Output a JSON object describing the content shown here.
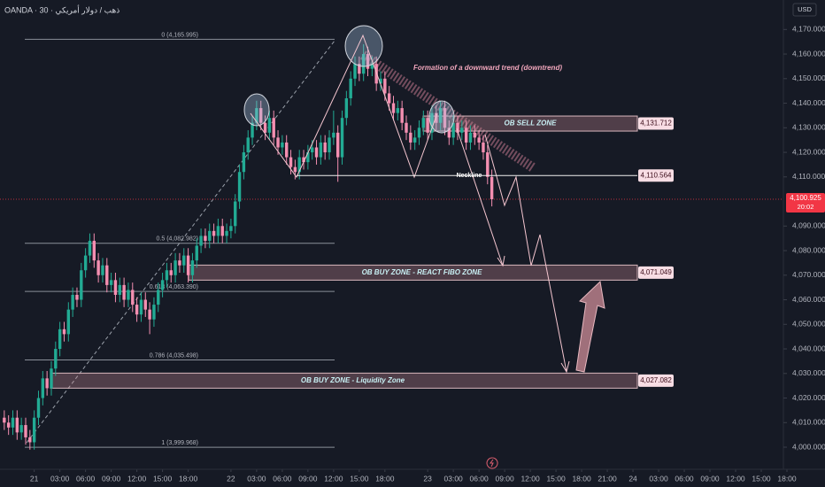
{
  "chart_data": {
    "type": "candlestick",
    "title": "OANDA · 30 · ذهب / دولار أمريكي",
    "currency": "USD",
    "annotation": "Formation of a downward trend (downtrend)",
    "up_color": "#22ab94",
    "down_color": "#f48fb1",
    "ylim": [
      3991,
      4182
    ],
    "yticks": [
      {
        "value": 4000,
        "label": "4,000.000"
      },
      {
        "value": 4010,
        "label": "4,010.000"
      },
      {
        "value": 4020,
        "label": "4,020.000"
      },
      {
        "value": 4030,
        "label": "4,030.000"
      },
      {
        "value": 4040,
        "label": "4,040.000"
      },
      {
        "value": 4050,
        "label": "4,050.000"
      },
      {
        "value": 4060,
        "label": "4,060.000"
      },
      {
        "value": 4070,
        "label": "4,070.000"
      },
      {
        "value": 4080,
        "label": "4,080.000"
      },
      {
        "value": 4090,
        "label": "4,090.000"
      },
      {
        "value": 4110,
        "label": "4,110.000"
      },
      {
        "value": 4120,
        "label": "4,120.000"
      },
      {
        "value": 4130,
        "label": "4,130.000"
      },
      {
        "value": 4140,
        "label": "4,140.000"
      },
      {
        "value": 4150,
        "label": "4,150.000"
      },
      {
        "value": 4160,
        "label": "4,160.000"
      },
      {
        "value": 4170,
        "label": "4,170.000"
      }
    ],
    "xlim": [
      -1,
      183
    ],
    "xticks": [
      {
        "value": 7,
        "label": "21"
      },
      {
        "value": 13,
        "label": "03:00"
      },
      {
        "value": 19,
        "label": "06:00"
      },
      {
        "value": 25,
        "label": "09:00"
      },
      {
        "value": 31,
        "label": "12:00"
      },
      {
        "value": 37,
        "label": "15:00"
      },
      {
        "value": 43,
        "label": "18:00"
      },
      {
        "value": 53,
        "label": "22"
      },
      {
        "value": 59,
        "label": "03:00"
      },
      {
        "value": 65,
        "label": "06:00"
      },
      {
        "value": 71,
        "label": "09:00"
      },
      {
        "value": 77,
        "label": "12:00"
      },
      {
        "value": 83,
        "label": "15:00"
      },
      {
        "value": 89,
        "label": "18:00"
      },
      {
        "value": 99,
        "label": "23"
      },
      {
        "value": 105,
        "label": "03:00"
      },
      {
        "value": 111,
        "label": "06:00"
      },
      {
        "value": 117,
        "label": "09:00"
      },
      {
        "value": 123,
        "label": "12:00"
      },
      {
        "value": 129,
        "label": "15:00"
      },
      {
        "value": 135,
        "label": "18:00"
      },
      {
        "value": 141,
        "label": "21:00"
      },
      {
        "value": 147,
        "label": "24"
      },
      {
        "value": 153,
        "label": "03:00"
      },
      {
        "value": 159,
        "label": "06:00"
      },
      {
        "value": 165,
        "label": "09:00"
      },
      {
        "value": 171,
        "label": "12:00"
      },
      {
        "value": 177,
        "label": "15:00"
      },
      {
        "value": 183,
        "label": "18:00"
      }
    ],
    "current_price": {
      "value": 4100.925,
      "label": "4,100.925"
    },
    "countdown": "20:02",
    "fib_levels": [
      {
        "value": 4165.995,
        "label": "0 (4,165.995)"
      },
      {
        "value": 4082.982,
        "label": "0.5 (4,082.982)"
      },
      {
        "value": 4063.39,
        "label": "0.618 (4,063.390)"
      },
      {
        "value": 4035.498,
        "label": "0.786 (4,035.498)"
      },
      {
        "value": 3999.968,
        "label": "1 (3,999.968)"
      }
    ],
    "zones": [
      {
        "name": "OB SELL ZONE",
        "price": {
          "value": 4131.712,
          "label": "4,131.712"
        }
      },
      {
        "name": "OB BUY ZONE - REACT FIBO ZONE",
        "price": {
          "value": 4071.049,
          "label": "4,071.049"
        }
      },
      {
        "name": "OB BUY ZONE - Liquidity Zone",
        "price": {
          "value": 4027.082,
          "label": "4,027.082"
        }
      }
    ],
    "neckline": {
      "name": "Neckline",
      "price": {
        "value": 4110.564,
        "label": "4,110.564"
      }
    },
    "candles": [
      [
        4012,
        4015,
        4007,
        4010
      ],
      [
        4010,
        4013,
        4005,
        4008
      ],
      [
        4008,
        4015,
        4005,
        4012
      ],
      [
        4012,
        4015,
        4003,
        4006
      ],
      [
        4006,
        4012,
        4003,
        4009
      ],
      [
        4009,
        4012,
        4001,
        4004
      ],
      [
        4004,
        4007,
        3999,
        4002
      ],
      [
        4002,
        4015,
        3999,
        4012
      ],
      [
        4012,
        4023,
        4009,
        4020
      ],
      [
        4020,
        4031,
        4017,
        4028
      ],
      [
        4028,
        4031,
        4021,
        4024
      ],
      [
        4024,
        4035,
        4021,
        4032
      ],
      [
        4032,
        4043,
        4029,
        4040
      ],
      [
        4040,
        4051,
        4037,
        4048
      ],
      [
        4048,
        4051,
        4043,
        4046
      ],
      [
        4046,
        4059,
        4043,
        4056
      ],
      [
        4056,
        4065,
        4053,
        4062
      ],
      [
        4062,
        4065,
        4057,
        4060
      ],
      [
        4060,
        4075,
        4057,
        4072
      ],
      [
        4072,
        4081,
        4069,
        4078
      ],
      [
        4078,
        4087,
        4075,
        4084
      ],
      [
        4084,
        4087,
        4073,
        4076
      ],
      [
        4076,
        4079,
        4067,
        4070
      ],
      [
        4070,
        4077,
        4067,
        4074
      ],
      [
        4074,
        4077,
        4063,
        4066
      ],
      [
        4066,
        4071,
        4063,
        4068
      ],
      [
        4068,
        4071,
        4059,
        4062
      ],
      [
        4062,
        4069,
        4059,
        4066
      ],
      [
        4066,
        4069,
        4057,
        4060
      ],
      [
        4060,
        4067,
        4057,
        4064
      ],
      [
        4064,
        4067,
        4055,
        4058
      ],
      [
        4058,
        4061,
        4051,
        4054
      ],
      [
        4054,
        4063,
        4051,
        4060
      ],
      [
        4060,
        4063,
        4053,
        4056
      ],
      [
        4056,
        4059,
        4046,
        4052
      ],
      [
        4052,
        4061,
        4049,
        4058
      ],
      [
        4058,
        4067,
        4055,
        4064
      ],
      [
        4064,
        4071,
        4061,
        4068
      ],
      [
        4068,
        4075,
        4065,
        4072
      ],
      [
        4072,
        4075,
        4067,
        4070
      ],
      [
        4070,
        4079,
        4067,
        4076
      ],
      [
        4076,
        4079,
        4071,
        4074
      ],
      [
        4074,
        4081,
        4071,
        4078
      ],
      [
        4078,
        4081,
        4067,
        4070
      ],
      [
        4070,
        4079,
        4067,
        4076
      ],
      [
        4076,
        4085,
        4073,
        4082
      ],
      [
        4082,
        4089,
        4079,
        4086
      ],
      [
        4086,
        4089,
        4081,
        4084
      ],
      [
        4084,
        4091,
        4081,
        4088
      ],
      [
        4088,
        4091,
        4083,
        4086
      ],
      [
        4086,
        4093,
        4083,
        4090
      ],
      [
        4090,
        4093,
        4083,
        4086
      ],
      [
        4086,
        4091,
        4083,
        4088
      ],
      [
        4088,
        4093,
        4085,
        4090
      ],
      [
        4090,
        4103,
        4087,
        4100
      ],
      [
        4100,
        4115,
        4097,
        4112
      ],
      [
        4112,
        4123,
        4109,
        4120
      ],
      [
        4120,
        4129,
        4117,
        4126
      ],
      [
        4126,
        4135,
        4123,
        4132
      ],
      [
        4132,
        4141,
        4129,
        4138
      ],
      [
        4138,
        4141,
        4129,
        4132
      ],
      [
        4132,
        4135,
        4125,
        4128
      ],
      [
        4128,
        4137,
        4125,
        4134
      ],
      [
        4134,
        4137,
        4123,
        4126
      ],
      [
        4126,
        4129,
        4119,
        4122
      ],
      [
        4122,
        4127,
        4119,
        4124
      ],
      [
        4124,
        4127,
        4115,
        4118
      ],
      [
        4118,
        4121,
        4111,
        4114
      ],
      [
        4114,
        4117,
        4109,
        4112
      ],
      [
        4112,
        4121,
        4109,
        4118
      ],
      [
        4118,
        4121,
        4113,
        4116
      ],
      [
        4116,
        4123,
        4113,
        4120
      ],
      [
        4120,
        4125,
        4117,
        4122
      ],
      [
        4122,
        4125,
        4115,
        4118
      ],
      [
        4118,
        4127,
        4115,
        4124
      ],
      [
        4124,
        4127,
        4117,
        4120
      ],
      [
        4120,
        4129,
        4117,
        4126
      ],
      [
        4126,
        4137,
        4123,
        4128
      ],
      [
        4128,
        4131,
        4108,
        4118
      ],
      [
        4118,
        4137,
        4115,
        4134
      ],
      [
        4134,
        4145,
        4131,
        4142
      ],
      [
        4142,
        4153,
        4139,
        4150
      ],
      [
        4150,
        4159,
        4147,
        4156
      ],
      [
        4156,
        4159,
        4149,
        4152
      ],
      [
        4152,
        4164,
        4149,
        4160
      ],
      [
        4160,
        4163,
        4151,
        4154
      ],
      [
        4154,
        4159,
        4151,
        4156
      ],
      [
        4156,
        4159,
        4145,
        4148
      ],
      [
        4148,
        4153,
        4145,
        4150
      ],
      [
        4150,
        4153,
        4141,
        4144
      ],
      [
        4144,
        4147,
        4137,
        4140
      ],
      [
        4140,
        4143,
        4133,
        4136
      ],
      [
        4136,
        4141,
        4133,
        4138
      ],
      [
        4138,
        4141,
        4129,
        4132
      ],
      [
        4132,
        4135,
        4125,
        4128
      ],
      [
        4128,
        4131,
        4121,
        4124
      ],
      [
        4124,
        4129,
        4121,
        4126
      ],
      [
        4126,
        4133,
        4123,
        4130
      ],
      [
        4130,
        4137,
        4127,
        4134
      ],
      [
        4134,
        4137,
        4125,
        4128
      ],
      [
        4128,
        4139,
        4125,
        4136
      ],
      [
        4136,
        4139,
        4129,
        4132
      ],
      [
        4132,
        4141,
        4129,
        4138
      ],
      [
        4138,
        4141,
        4127,
        4130
      ],
      [
        4130,
        4133,
        4123,
        4126
      ],
      [
        4126,
        4135,
        4123,
        4132
      ],
      [
        4132,
        4135,
        4125,
        4128
      ],
      [
        4128,
        4133,
        4125,
        4130
      ],
      [
        4130,
        4133,
        4121,
        4124
      ],
      [
        4124,
        4131,
        4121,
        4128
      ],
      [
        4128,
        4131,
        4123,
        4126
      ],
      [
        4126,
        4129,
        4121,
        4124
      ],
      [
        4124,
        4127,
        4117,
        4120
      ],
      [
        4120,
        4123,
        4107,
        4110
      ],
      [
        4110,
        4113,
        4098,
        4100.925
      ]
    ]
  }
}
